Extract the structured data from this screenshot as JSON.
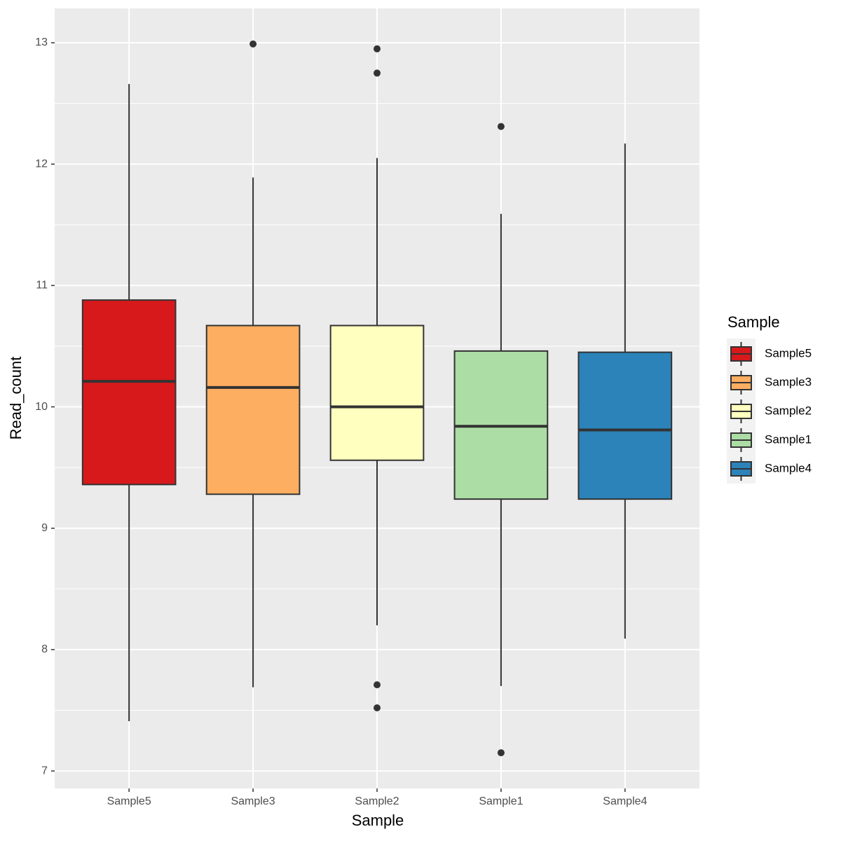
{
  "chart_data": {
    "type": "box",
    "x_label": "Sample",
    "y_label": "Read_count",
    "legend_title": "Sample",
    "categories": [
      "Sample5",
      "Sample3",
      "Sample2",
      "Sample1",
      "Sample4"
    ],
    "series": [
      {
        "name": "Sample5",
        "color": "#d7191c",
        "values": {
          "min": 7.41,
          "q1": 9.36,
          "median": 10.21,
          "q3": 10.88,
          "max": 12.66,
          "outliers": []
        }
      },
      {
        "name": "Sample3",
        "color": "#fdae61",
        "values": {
          "min": 7.69,
          "q1": 9.28,
          "median": 10.16,
          "q3": 10.67,
          "max": 11.89,
          "outliers": [
            12.99
          ]
        }
      },
      {
        "name": "Sample2",
        "color": "#ffffbf",
        "values": {
          "min": 8.2,
          "q1": 9.56,
          "median": 10.0,
          "q3": 10.67,
          "max": 12.05,
          "outliers": [
            12.95,
            12.75,
            7.71,
            7.52
          ]
        }
      },
      {
        "name": "Sample1",
        "color": "#abdda4",
        "values": {
          "min": 7.7,
          "q1": 9.24,
          "median": 9.84,
          "q3": 10.46,
          "max": 11.59,
          "outliers": [
            12.31,
            7.15
          ]
        }
      },
      {
        "name": "Sample4",
        "color": "#2b83ba",
        "values": {
          "min": 8.09,
          "q1": 9.24,
          "median": 9.81,
          "q3": 10.45,
          "max": 12.17,
          "outliers": []
        }
      }
    ],
    "ylim": [
      6.856,
      13.283
    ],
    "yticks": [
      7,
      8,
      9,
      10,
      11,
      12,
      13
    ],
    "yminor": [
      7.5,
      8.5,
      9.5,
      10.5,
      11.5,
      12.5
    ],
    "grid": true
  }
}
